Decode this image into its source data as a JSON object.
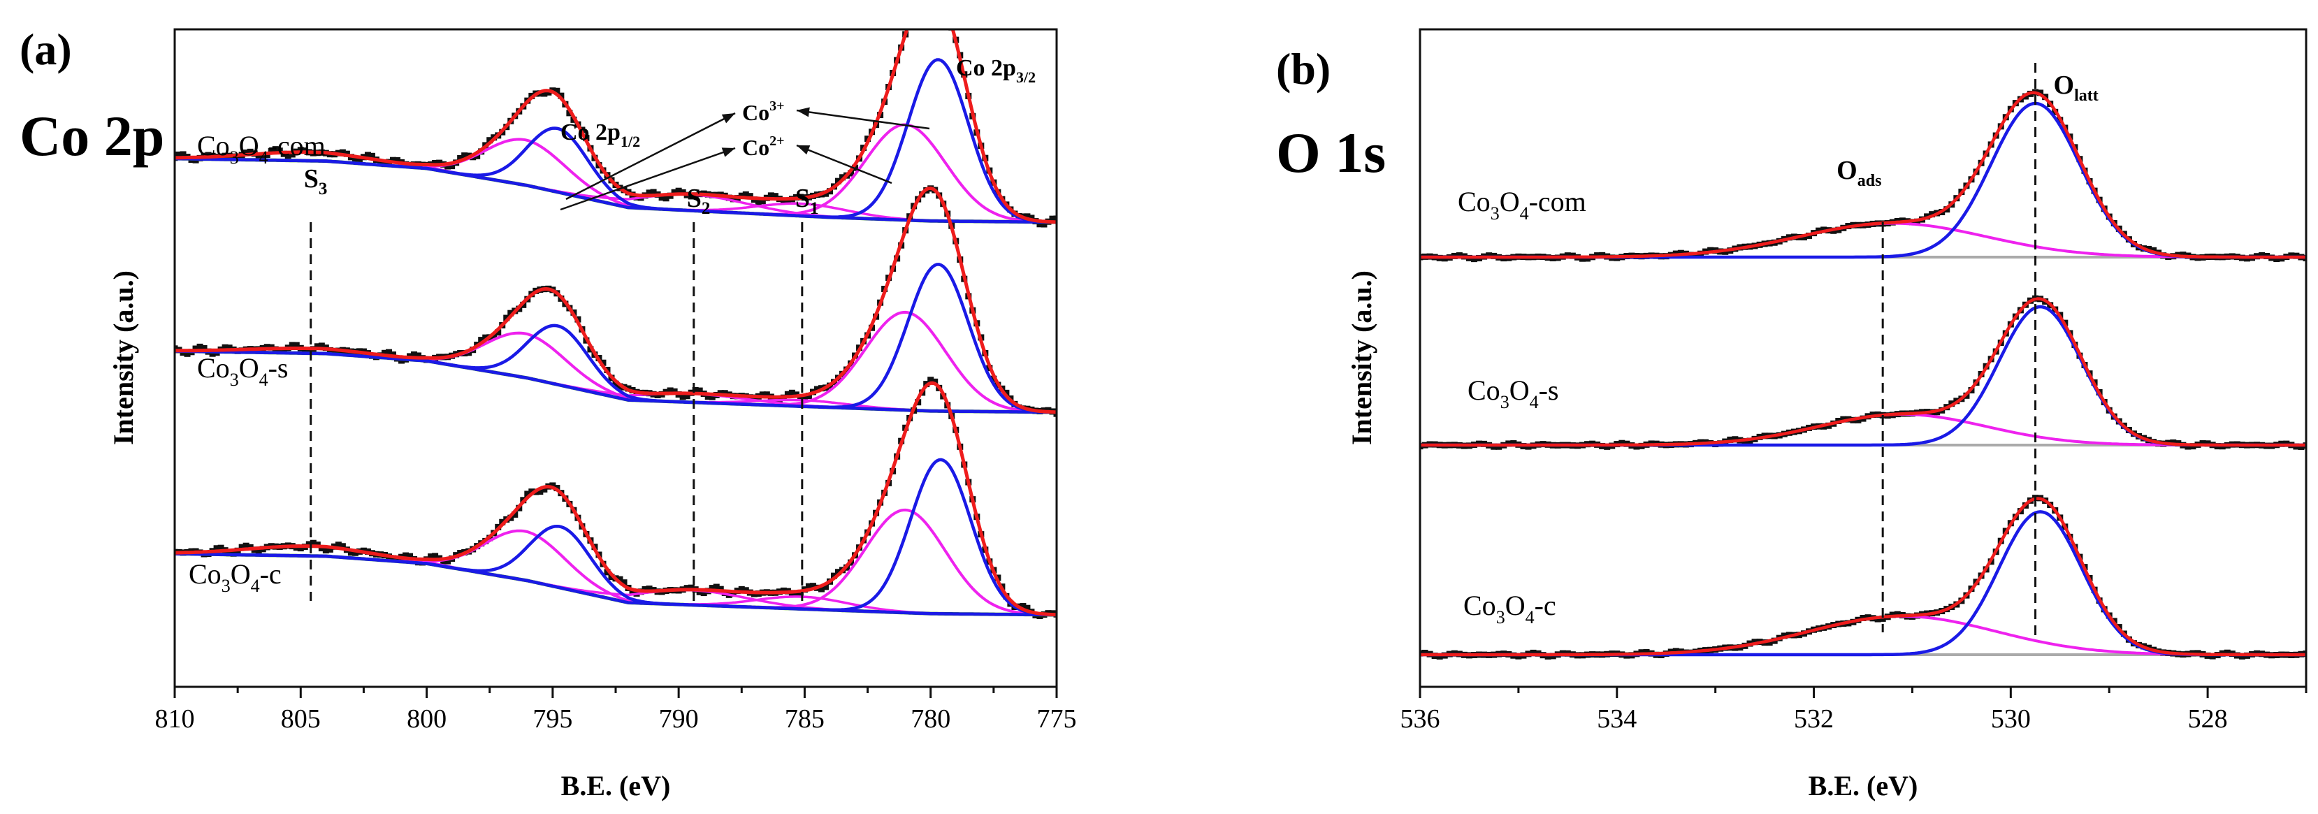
{
  "chart_data": [
    {
      "type": "line",
      "panel_label": "(a)",
      "title": "Co 2p",
      "xlabel": "B.E. (eV)",
      "ylabel": "Intensity (a.u.)",
      "xlim": [
        810,
        775
      ],
      "x_reversed": true,
      "xticks": [
        810,
        805,
        800,
        795,
        790,
        785,
        780,
        775
      ],
      "grid": false,
      "y_units": "arbitrary (stacked spectra)",
      "colors": {
        "raw": "#111111",
        "envelope": "#ee1c1c",
        "co3": "#1a1ae6",
        "co2": "#ee22ee",
        "satellite": "#ee22ee",
        "background": "#2f7f1f"
      },
      "samples": [
        {
          "name": "Co3O4-com",
          "label_main": "Co",
          "label_sub1": "3",
          "label_mid": "O",
          "label_sub2": "4",
          "label_tail": "-com",
          "offset": 2.4,
          "background": [
            [
              810,
              0.52
            ],
            [
              804,
              0.5
            ],
            [
              800,
              0.44
            ],
            [
              796,
              0.3
            ],
            [
              792,
              0.12
            ],
            [
              788,
              0.08
            ],
            [
              784,
              0.04
            ],
            [
              780,
              0.01
            ],
            [
              775,
              0
            ]
          ],
          "co3": [
            {
              "center": 779.7,
              "height": 1.32,
              "width": 1.2
            },
            {
              "center": 794.8,
              "height": 0.52,
              "width": 1.2
            }
          ],
          "co2": [
            {
              "center": 781.0,
              "height": 0.78,
              "width": 1.6
            },
            {
              "center": 796.1,
              "height": 0.37,
              "width": 1.6
            }
          ],
          "satellites": [
            {
              "center": 804.6,
              "height": 0.07,
              "width": 2.5
            },
            {
              "center": 789.5,
              "height": 0.13,
              "width": 2.2
            },
            {
              "center": 785.1,
              "height": 0.1,
              "width": 1.8
            }
          ]
        },
        {
          "name": "Co3O4-s",
          "label_main": "Co",
          "label_sub1": "3",
          "label_mid": "O",
          "label_sub2": "4",
          "label_tail": "-s",
          "offset": 1.2,
          "background": [
            [
              810,
              0.5
            ],
            [
              804,
              0.48
            ],
            [
              800,
              0.42
            ],
            [
              796,
              0.28
            ],
            [
              792,
              0.1
            ],
            [
              788,
              0.07
            ],
            [
              784,
              0.04
            ],
            [
              780,
              0.01
            ],
            [
              775,
              0
            ]
          ],
          "co3": [
            {
              "center": 779.7,
              "height": 1.2,
              "width": 1.2
            },
            {
              "center": 794.8,
              "height": 0.48,
              "width": 1.2
            }
          ],
          "co2": [
            {
              "center": 781.0,
              "height": 0.8,
              "width": 1.6
            },
            {
              "center": 796.1,
              "height": 0.36,
              "width": 1.6
            }
          ],
          "satellites": [
            {
              "center": 804.6,
              "height": 0.04,
              "width": 2.5
            },
            {
              "center": 789.5,
              "height": 0.07,
              "width": 2.2
            },
            {
              "center": 785.1,
              "height": 0.05,
              "width": 1.8
            }
          ]
        },
        {
          "name": "Co3O4-c",
          "label_main": "Co",
          "label_sub1": "3",
          "label_mid": "O",
          "label_sub2": "4",
          "label_tail": "-c",
          "offset": 0.0,
          "background": [
            [
              810,
              0.5
            ],
            [
              804,
              0.48
            ],
            [
              800,
              0.42
            ],
            [
              796,
              0.28
            ],
            [
              792,
              0.1
            ],
            [
              788,
              0.07
            ],
            [
              784,
              0.04
            ],
            [
              780,
              0.01
            ],
            [
              775,
              0
            ]
          ],
          "co3": [
            {
              "center": 779.6,
              "height": 1.26,
              "width": 1.2
            },
            {
              "center": 794.7,
              "height": 0.5,
              "width": 1.2
            }
          ],
          "co2": [
            {
              "center": 781.0,
              "height": 0.84,
              "width": 1.6
            },
            {
              "center": 796.1,
              "height": 0.4,
              "width": 1.6
            }
          ],
          "satellites": [
            {
              "center": 804.6,
              "height": 0.08,
              "width": 2.5
            },
            {
              "center": 789.5,
              "height": 0.12,
              "width": 2.2
            },
            {
              "center": 785.1,
              "height": 0.1,
              "width": 1.8
            }
          ]
        }
      ],
      "reference_lines": [
        {
          "label_main": "S",
          "label_sub": "3",
          "x": 804.6
        },
        {
          "label_main": "S",
          "label_sub": "2",
          "x": 789.4
        },
        {
          "label_main": "S",
          "label_sub": "1",
          "x": 785.1
        }
      ],
      "annotations": {
        "co2p12": {
          "main": "Co 2p",
          "sub": "1/2",
          "x": 795.0
        },
        "co2p32": {
          "main": "Co 2p",
          "sub": "3/2",
          "x": 779.5
        },
        "co3plus": {
          "main": "Co",
          "sup": "3+"
        },
        "co2plus": {
          "main": "Co",
          "sup": "2+"
        }
      }
    },
    {
      "type": "line",
      "panel_label": "(b)",
      "title": "O 1s",
      "xlabel": "B.E. (eV)",
      "ylabel": "Intensity (a.u.)",
      "xlim": [
        536,
        527
      ],
      "x_reversed": true,
      "xticks": [
        536,
        534,
        532,
        530,
        528
      ],
      "grid": false,
      "y_units": "arbitrary (stacked spectra)",
      "colors": {
        "raw": "#111111",
        "envelope": "#ee1c1c",
        "o_latt": "#1a1ae6",
        "o_ads": "#ee22ee",
        "background": "#aaaaaa"
      },
      "samples": [
        {
          "name": "Co3O4-com",
          "label_main": "Co",
          "label_sub1": "3",
          "label_mid": "O",
          "label_sub2": "4",
          "label_tail": "-com",
          "offset": 2.3,
          "o_latt": {
            "center": 529.75,
            "height": 1.0,
            "width": 0.45
          },
          "o_ads": {
            "center": 531.2,
            "height": 0.22,
            "width": 0.95
          }
        },
        {
          "name": "Co3O4-s",
          "label_main": "Co",
          "label_sub1": "3",
          "label_mid": "O",
          "label_sub2": "4",
          "label_tail": "-s",
          "offset": 1.15,
          "o_latt": {
            "center": 529.7,
            "height": 0.9,
            "width": 0.42
          },
          "o_ads": {
            "center": 531.1,
            "height": 0.2,
            "width": 0.85
          }
        },
        {
          "name": "Co3O4-c",
          "label_main": "Co",
          "label_sub1": "3",
          "label_mid": "O",
          "label_sub2": "4",
          "label_tail": "-c",
          "offset": 0.0,
          "o_latt": {
            "center": 529.7,
            "height": 0.93,
            "width": 0.42
          },
          "o_ads": {
            "center": 531.1,
            "height": 0.25,
            "width": 0.95
          }
        }
      ],
      "reference_lines": [
        {
          "label_main": "O",
          "label_sub": "ads",
          "x": 531.3
        },
        {
          "label_main": "O",
          "label_sub": "latt",
          "x": 529.75
        }
      ]
    }
  ]
}
